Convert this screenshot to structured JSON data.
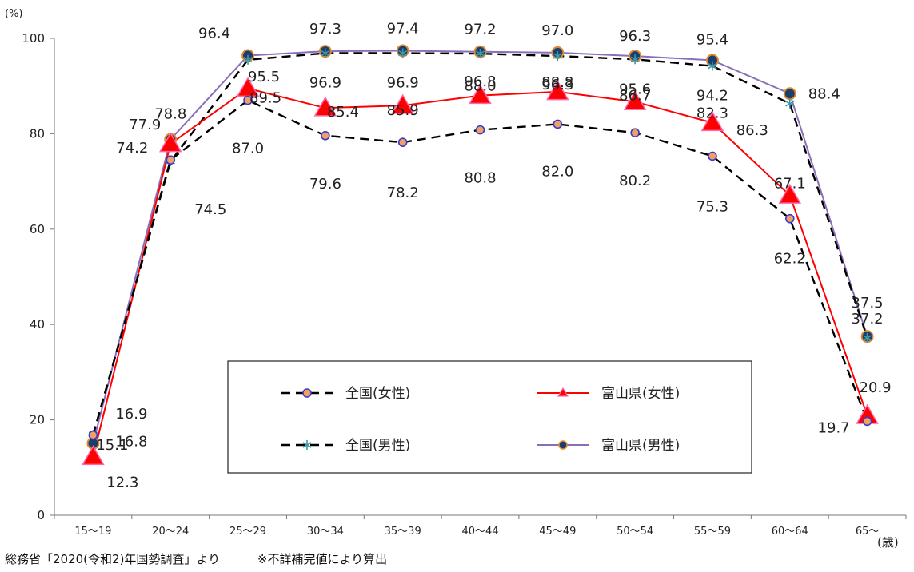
{
  "chart_data": {
    "type": "line",
    "title": "",
    "y_unit": "(%)",
    "x_unit": "(歳)",
    "ylim": [
      0,
      100
    ],
    "yticks": [
      0,
      20,
      40,
      60,
      80,
      100
    ],
    "grid": false,
    "legend_position": "center-bottom",
    "categories": [
      "15〜19",
      "20〜24",
      "25〜29",
      "30〜34",
      "35〜39",
      "40〜44",
      "45〜49",
      "50〜54",
      "55〜59",
      "60〜64",
      "65〜"
    ],
    "series": [
      {
        "name": "全国(女性)",
        "style": "dashed",
        "line_color": "#000000",
        "marker": "circle",
        "marker_fill": "#f0a060",
        "marker_edge": "#3a3ad0",
        "values": [
          16.8,
          74.5,
          87.0,
          79.6,
          78.2,
          80.8,
          82.0,
          80.2,
          75.3,
          62.2,
          19.7
        ]
      },
      {
        "name": "富山県(女性)",
        "style": "solid",
        "line_color": "#ff0000",
        "marker": "triangle",
        "marker_fill": "#ff0000",
        "marker_edge": "#ff66aa",
        "values": [
          12.3,
          77.9,
          89.5,
          85.4,
          85.9,
          88.0,
          88.8,
          86.7,
          82.3,
          67.1,
          20.9
        ]
      },
      {
        "name": "全国(男性)",
        "style": "dashed",
        "line_color": "#000000",
        "marker": "star",
        "marker_fill": "#3a9aaa",
        "marker_edge": "#3a9aaa",
        "values": [
          16.9,
          74.2,
          95.5,
          96.9,
          96.9,
          96.8,
          96.3,
          95.6,
          94.2,
          86.3,
          37.2
        ]
      },
      {
        "name": "富山県(男性)",
        "style": "solid",
        "line_color": "#8a6fb8",
        "marker": "circle",
        "marker_fill": "#1a3e6e",
        "marker_edge": "#e08a30",
        "values": [
          15.1,
          78.8,
          96.4,
          97.3,
          97.4,
          97.2,
          97.0,
          96.3,
          95.4,
          88.4,
          37.5
        ]
      }
    ],
    "data_labels": [
      [
        "16.8",
        "74.5",
        "87.0",
        "79.6",
        "78.2",
        "80.8",
        "82.0",
        "80.2",
        "75.3",
        "62.2",
        "19.7"
      ],
      [
        "12.3",
        "77.9",
        "89.5",
        "85.4",
        "85.9",
        "88.0",
        "88.8",
        "86.7",
        "82.3",
        "67.1",
        "20.9"
      ],
      [
        "16.9",
        "74.2",
        "95.5",
        "96.9",
        "96.9",
        "96.8",
        "96.3",
        "95.6",
        "94.2",
        "86.3",
        "37.2"
      ],
      [
        "15.1",
        "78.8",
        "96.4",
        "97.3",
        "97.4",
        "97.2",
        "97.0",
        "96.3",
        "95.4",
        "88.4",
        "37.5"
      ]
    ]
  },
  "footer": {
    "source": "総務省「2020(令和2)年国勢調査」より",
    "note": "※不詳補完値により算出"
  }
}
